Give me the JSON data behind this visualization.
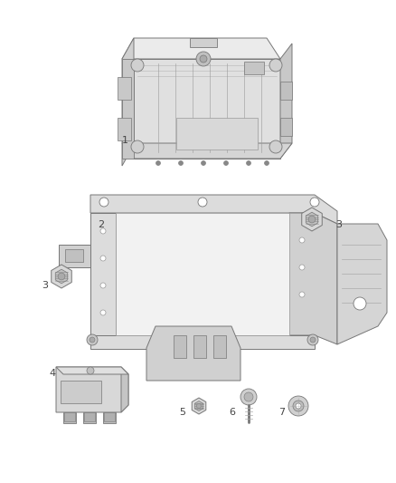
{
  "background_color": "#ffffff",
  "fig_width": 4.38,
  "fig_height": 5.33,
  "dpi": 100,
  "lc": "#999999",
  "lc2": "#777777",
  "lc3": "#aaaaaa",
  "fill_light": "#e8e8e8",
  "fill_mid": "#d8d8d8",
  "fill_dark": "#c0c0c0",
  "label_color": "#444444",
  "label_fs": 8,
  "lw": 0.6
}
